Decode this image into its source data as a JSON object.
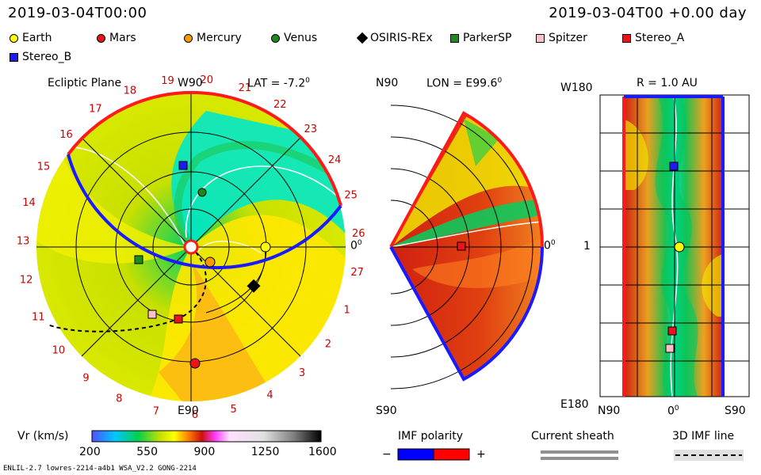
{
  "header": {
    "datetime": "2019-03-04T00:00",
    "relative": "2019-03-04T00 +0.00 day"
  },
  "legend": {
    "items": [
      {
        "name": "Earth",
        "color": "#ffff00",
        "shape": "circle"
      },
      {
        "name": "Mars",
        "color": "#e8141c",
        "shape": "circle"
      },
      {
        "name": "Mercury",
        "color": "#ff9a00",
        "shape": "circle"
      },
      {
        "name": "Venus",
        "color": "#1a8a1a",
        "shape": "circle"
      },
      {
        "name": "OSIRIS-REx",
        "color": "#000000",
        "shape": "diamond"
      },
      {
        "name": "ParkerSP",
        "color": "#1c8c1c",
        "shape": "square"
      },
      {
        "name": "Spitzer",
        "color": "#ffc0c8",
        "shape": "square"
      },
      {
        "name": "Stereo_A",
        "color": "#e8141c",
        "shape": "square"
      },
      {
        "name": "Stereo_B",
        "color": "#1c1cf0",
        "shape": "square"
      }
    ]
  },
  "panel_ecliptic": {
    "title": "Ecliptic Plane",
    "top_label": "W90",
    "bottom_label": "E90",
    "right_label": "0",
    "lat_label": "LAT = -7.2",
    "sector_numbers": [
      "19",
      "20",
      "21",
      "22",
      "23",
      "24",
      "25",
      "26",
      "27",
      "1",
      "2",
      "3",
      "4",
      "5",
      "6",
      "7",
      "8",
      "9",
      "10",
      "11",
      "12",
      "13",
      "14",
      "15",
      "16",
      "17",
      "18"
    ]
  },
  "panel_meridional": {
    "lon_label": "LON = E99.6",
    "top_label": "N90",
    "bottom_label": "S90",
    "right_label": "0"
  },
  "panel_radial": {
    "r_label": "R = 1.0 AU",
    "top_label": "W180",
    "bottom_label": "E180",
    "mid_label": "1",
    "xticks": [
      "N90",
      "0",
      "S90"
    ]
  },
  "colorbar": {
    "label": "Vr (km/s)",
    "ticks": [
      "200",
      "550",
      "900",
      "1250",
      "1600"
    ]
  },
  "imf_polarity": {
    "label": "IMF polarity",
    "minus": "−",
    "plus": "+",
    "colors": {
      "negative": "#0000ff",
      "positive": "#ff0000"
    }
  },
  "current_sheath": {
    "label": "Current sheath"
  },
  "imf_line": {
    "label": "3D IMF line"
  },
  "footer": {
    "left": "ENLIL-2.7 lowres-2214-a4b1 WSA_V2.2 GONG-2214"
  },
  "chart_data": {
    "type": "heatmap",
    "title": "",
    "quantity": "Vr (km/s)",
    "range": [
      200,
      1600
    ],
    "colormap_stops": [
      "#4040ff",
      "#00e0ff",
      "#00d060",
      "#c8e000",
      "#ffff00",
      "#ff8000",
      "#cc1010",
      "#ff40ff",
      "#ffffff",
      "#d8d8d8",
      "#000000"
    ]
  }
}
